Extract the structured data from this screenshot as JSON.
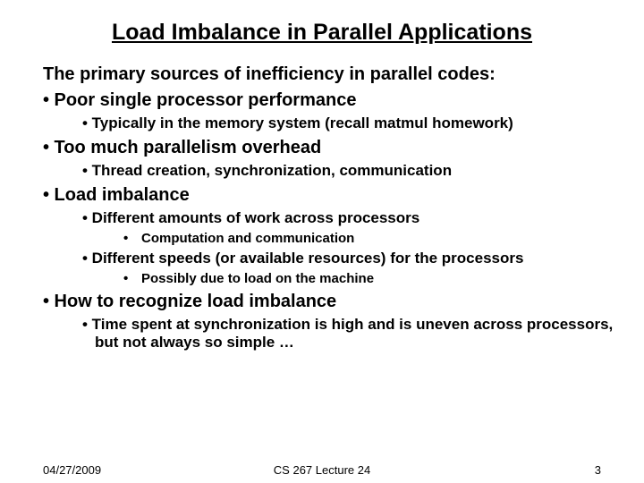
{
  "title": "Load Imbalance in Parallel Applications",
  "intro": "The primary sources of inefficiency in parallel codes:",
  "bullets": {
    "b1": "• Poor single processor performance",
    "b1a": "• Typically in the memory system (recall matmul homework)",
    "b2": "• Too much parallelism overhead",
    "b2a": "• Thread creation, synchronization, communication",
    "b3": "• Load imbalance",
    "b3a": "• Different amounts of work across processors",
    "b3a1_dot": "•",
    "b3a1": "Computation and communication",
    "b3b": "• Different speeds (or available resources) for the processors",
    "b3b1_dot": "•",
    "b3b1": "Possibly due to load on the machine",
    "b4": "• How to recognize load imbalance",
    "b4a": "• Time spent at synchronization is high and is uneven across processors, but not always so simple …"
  },
  "footer": {
    "date": "04/27/2009",
    "center": "CS 267 Lecture 24",
    "page": "3"
  },
  "colors": {
    "background": "#ffffff",
    "text": "#000000"
  },
  "fontsizes": {
    "title": 25,
    "intro": 20,
    "l1": 20,
    "l2": 17,
    "l3": 15,
    "footer": 13
  }
}
